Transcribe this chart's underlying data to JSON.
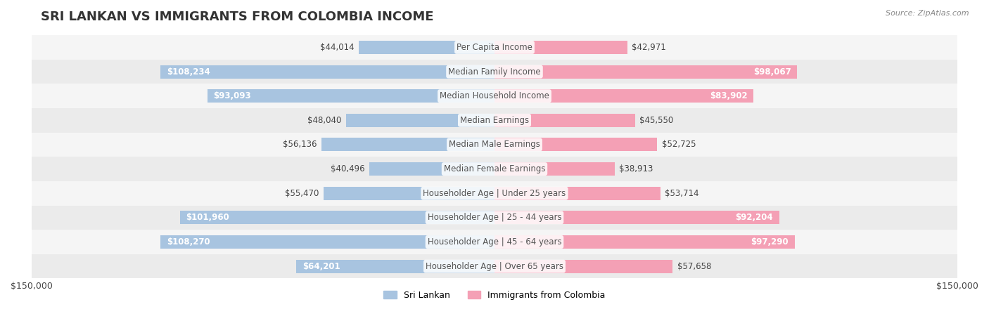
{
  "title": "SRI LANKAN VS IMMIGRANTS FROM COLOMBIA INCOME",
  "source": "Source: ZipAtlas.com",
  "categories": [
    "Per Capita Income",
    "Median Family Income",
    "Median Household Income",
    "Median Earnings",
    "Median Male Earnings",
    "Median Female Earnings",
    "Householder Age | Under 25 years",
    "Householder Age | 25 - 44 years",
    "Householder Age | 45 - 64 years",
    "Householder Age | Over 65 years"
  ],
  "sri_lankan": [
    44014,
    108234,
    93093,
    48040,
    56136,
    40496,
    55470,
    101960,
    108270,
    64201
  ],
  "colombia": [
    42971,
    98067,
    83902,
    45550,
    52725,
    38913,
    53714,
    92204,
    97290,
    57658
  ],
  "sri_lankan_color": "#a8c4e0",
  "colombia_color": "#f4a0b5",
  "sri_lankan_label_color_threshold": 60000,
  "bar_height": 0.55,
  "xlim": 150000,
  "background_row_colors": [
    "#f5f5f5",
    "#ebebeb"
  ],
  "title_fontsize": 13,
  "label_fontsize": 8.5,
  "tick_fontsize": 9,
  "legend_fontsize": 9
}
